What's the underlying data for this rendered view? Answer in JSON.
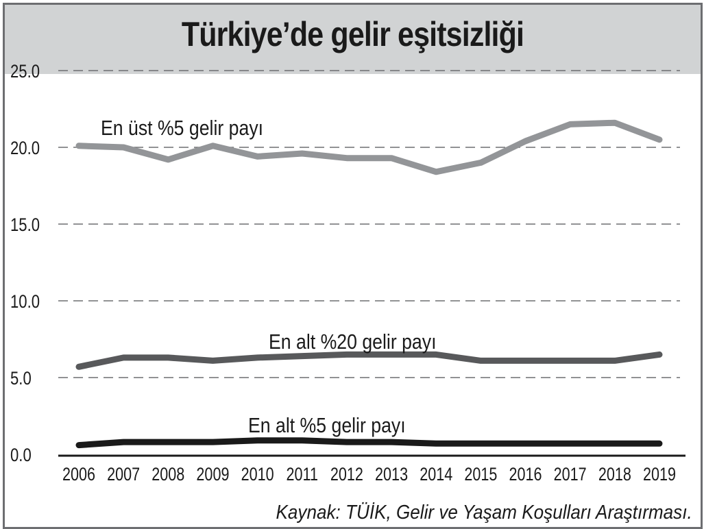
{
  "chart_data": {
    "type": "line",
    "title": "Türkiye’de gelir eşitsizliği",
    "source": "Kaynak: TÜİK, Gelir ve Yaşam Koşulları Araştırması.",
    "x": [
      "2006",
      "2007",
      "2008",
      "2009",
      "2010",
      "2011",
      "2012",
      "2013",
      "2014",
      "2015",
      "2016",
      "2017",
      "2018",
      "2019"
    ],
    "ylim": [
      0,
      25
    ],
    "yticks": [
      "0.0",
      "5.0",
      "10.0",
      "15.0",
      "20.0",
      "25.0"
    ],
    "grid": true,
    "series": [
      {
        "name": "En üst %5 gelir payı",
        "color": "#939598",
        "values": [
          20.1,
          20.0,
          19.2,
          20.1,
          19.4,
          19.6,
          19.3,
          19.3,
          18.4,
          19.0,
          20.4,
          21.5,
          21.6,
          20.5
        ]
      },
      {
        "name": "En alt %20 gelir payı",
        "color": "#58595b",
        "values": [
          5.7,
          6.3,
          6.3,
          6.1,
          6.3,
          6.4,
          6.5,
          6.5,
          6.5,
          6.1,
          6.1,
          6.1,
          6.1,
          6.5
        ]
      },
      {
        "name": "En alt %5 gelir payı",
        "color": "#1a1a1a",
        "values": [
          0.6,
          0.8,
          0.8,
          0.8,
          0.9,
          0.9,
          0.8,
          0.8,
          0.7,
          0.7,
          0.7,
          0.7,
          0.7,
          0.7
        ]
      }
    ]
  }
}
